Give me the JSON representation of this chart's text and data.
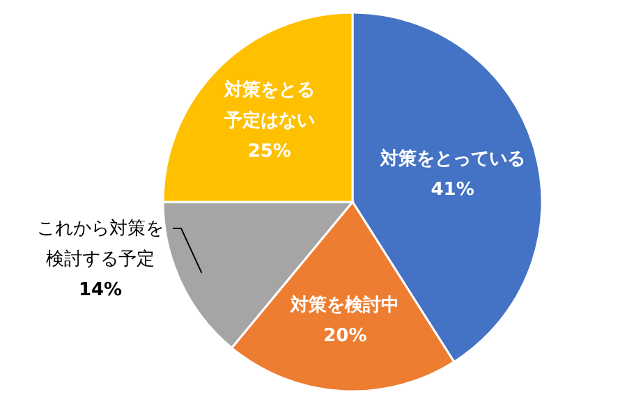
{
  "chart_data": {
    "type": "pie",
    "categories": [
      "対策をとっている",
      "対策を検討中",
      "これから対策を検討する予定",
      "対策をとる予定はない"
    ],
    "values": [
      41,
      20,
      14,
      25
    ],
    "value_labels": [
      "41%",
      "20%",
      "14%",
      "25%"
    ],
    "colors": [
      "#4472c4",
      "#ed7d31",
      "#a5a5a5",
      "#ffc000"
    ]
  }
}
